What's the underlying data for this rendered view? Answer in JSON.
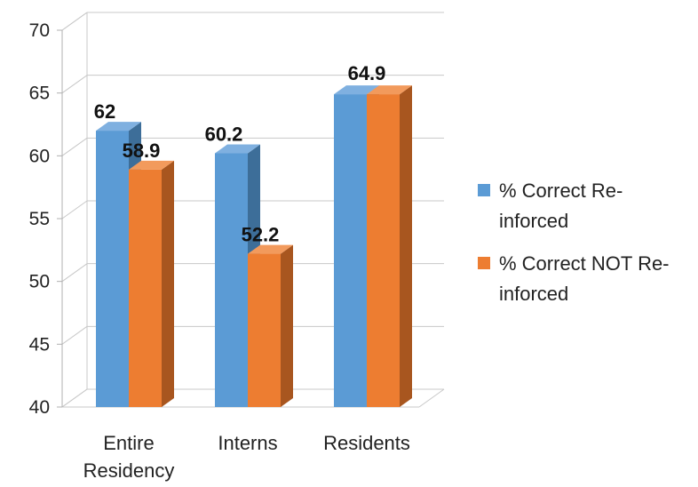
{
  "chart_data": {
    "type": "bar",
    "categories": [
      "Entire Residency",
      "Interns",
      "Residents"
    ],
    "category_lines": [
      [
        "Entire",
        "Residency"
      ],
      [
        "Interns"
      ],
      [
        "Residents"
      ]
    ],
    "series": [
      {
        "name": "% Correct Re-inforced",
        "legend_lines": [
          "% Correct Re-",
          "inforced"
        ],
        "color": "#5b9bd5",
        "side_color": "#3d6e99",
        "top_color": "#7fb0e0",
        "values": [
          62,
          60.2,
          64.9
        ]
      },
      {
        "name": "% Correct NOT Re-inforced",
        "legend_lines": [
          "% Correct NOT Re-",
          "inforced"
        ],
        "color": "#ed7d31",
        "side_color": "#a8561f",
        "top_color": "#f29a5c",
        "values": [
          58.9,
          52.2,
          64.9
        ]
      }
    ],
    "data_labels": [
      [
        "62",
        "58.9"
      ],
      [
        "60.2",
        "52.2"
      ],
      [
        "64.9",
        ""
      ]
    ],
    "yticks": [
      "40",
      "45",
      "50",
      "55",
      "60",
      "65",
      "70"
    ],
    "ylim": [
      40,
      70
    ],
    "grid": true,
    "legend_position": "right",
    "projection": "3d-clustered-column"
  }
}
